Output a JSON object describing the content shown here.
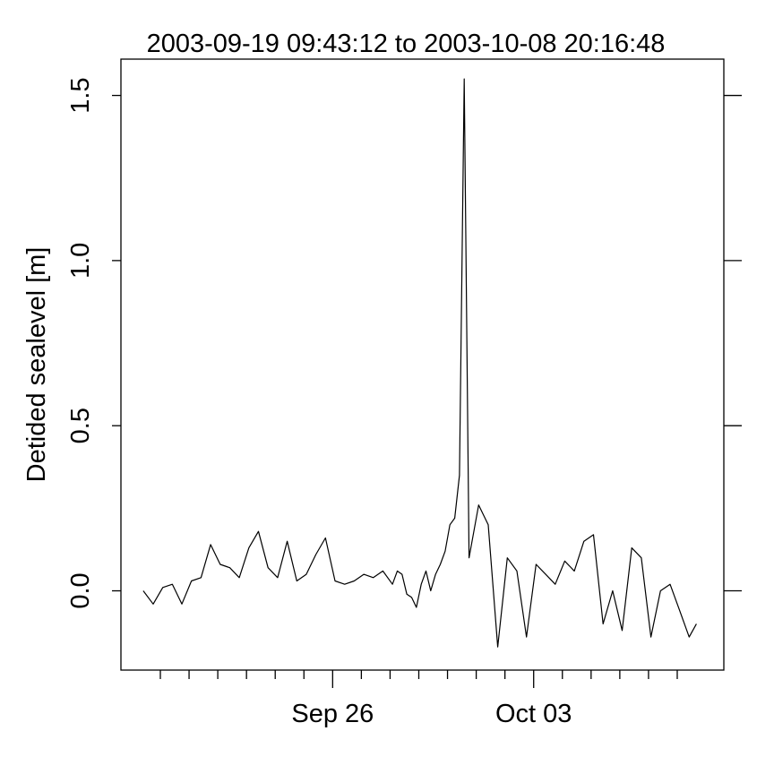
{
  "chart_data": {
    "type": "line",
    "title": "2003-09-19 09:43:12 to 2003-10-08 20:16:48",
    "xlabel": "",
    "ylabel": "Detided sealevel [m]",
    "x_start": "2003-09-19 09:43:12",
    "x_end": "2003-10-08 20:16:48",
    "x_major_ticks": [
      {
        "date": "2003-09-26",
        "label": "Sep 26"
      },
      {
        "date": "2003-10-03",
        "label": "Oct 03"
      }
    ],
    "x_minor_ticks": [
      "2003-09-20",
      "2003-09-21",
      "2003-09-22",
      "2003-09-23",
      "2003-09-24",
      "2003-09-25",
      "2003-09-27",
      "2003-09-28",
      "2003-09-29",
      "2003-09-30",
      "2003-10-01",
      "2003-10-02",
      "2003-10-04",
      "2003-10-05",
      "2003-10-06",
      "2003-10-07",
      "2003-10-08"
    ],
    "y_ticks": [
      0.0,
      0.5,
      1.0,
      1.5
    ],
    "y_tick_labels": [
      "0.0",
      "0.5",
      "1.0",
      "1.5"
    ],
    "ylim": [
      -0.24,
      1.61
    ],
    "grid": false,
    "legend": "none",
    "line_color": "#000000",
    "x": [
      "2003-09-19 09:43",
      "2003-09-19 18:00",
      "2003-09-20 02:00",
      "2003-09-20 10:00",
      "2003-09-20 18:00",
      "2003-09-21 02:00",
      "2003-09-21 10:00",
      "2003-09-21 18:00",
      "2003-09-22 02:00",
      "2003-09-22 10:00",
      "2003-09-22 18:00",
      "2003-09-23 02:00",
      "2003-09-23 10:00",
      "2003-09-23 18:00",
      "2003-09-24 02:00",
      "2003-09-24 10:00",
      "2003-09-24 18:00",
      "2003-09-25 02:00",
      "2003-09-25 10:00",
      "2003-09-25 18:00",
      "2003-09-26 02:00",
      "2003-09-26 10:00",
      "2003-09-26 18:00",
      "2003-09-27 02:00",
      "2003-09-27 10:00",
      "2003-09-27 18:00",
      "2003-09-28 02:00",
      "2003-09-28 06:00",
      "2003-09-28 10:00",
      "2003-09-28 14:00",
      "2003-09-28 18:00",
      "2003-09-28 22:00",
      "2003-09-29 02:00",
      "2003-09-29 06:00",
      "2003-09-29 10:00",
      "2003-09-29 14:00",
      "2003-09-29 18:00",
      "2003-09-29 22:00",
      "2003-09-30 02:00",
      "2003-09-30 06:00",
      "2003-09-30 10:00",
      "2003-09-30 14:00",
      "2003-09-30 18:00",
      "2003-10-01 02:00",
      "2003-10-01 10:00",
      "2003-10-01 18:00",
      "2003-10-02 02:00",
      "2003-10-02 10:00",
      "2003-10-02 18:00",
      "2003-10-03 02:00",
      "2003-10-03 10:00",
      "2003-10-03 18:00",
      "2003-10-04 02:00",
      "2003-10-04 10:00",
      "2003-10-04 18:00",
      "2003-10-05 02:00",
      "2003-10-05 10:00",
      "2003-10-05 18:00",
      "2003-10-06 02:00",
      "2003-10-06 10:00",
      "2003-10-06 18:00",
      "2003-10-07 02:00",
      "2003-10-07 10:00",
      "2003-10-07 18:00",
      "2003-10-08 02:00",
      "2003-10-08 10:00",
      "2003-10-08 16:00"
    ],
    "y": [
      0.0,
      -0.04,
      0.01,
      0.02,
      -0.04,
      0.03,
      0.04,
      0.14,
      0.08,
      0.07,
      0.04,
      0.13,
      0.18,
      0.07,
      0.04,
      0.15,
      0.03,
      0.05,
      0.11,
      0.16,
      0.03,
      0.02,
      0.03,
      0.05,
      0.04,
      0.06,
      0.02,
      0.06,
      0.05,
      -0.01,
      -0.02,
      -0.05,
      0.02,
      0.06,
      0.0,
      0.05,
      0.08,
      0.12,
      0.2,
      0.22,
      0.35,
      1.55,
      0.1,
      0.26,
      0.2,
      -0.17,
      0.1,
      0.06,
      -0.14,
      0.08,
      0.05,
      0.02,
      0.09,
      0.06,
      0.15,
      0.17,
      -0.1,
      0.0,
      -0.12,
      0.13,
      0.1,
      -0.14,
      0.0,
      0.02,
      -0.06,
      -0.14,
      -0.1
    ]
  }
}
